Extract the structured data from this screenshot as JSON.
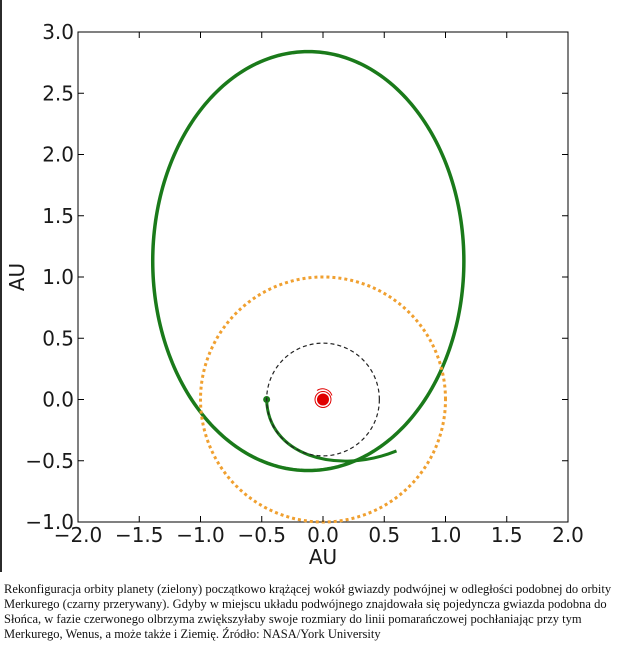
{
  "chart_data": {
    "type": "line",
    "xlabel": "AU",
    "ylabel": "AU",
    "xlim": [
      -2.0,
      2.0
    ],
    "ylim": [
      -1.0,
      3.0
    ],
    "xticks": [
      "−2.0",
      "−1.5",
      "−1.0",
      "−0.5",
      "0.0",
      "0.5",
      "1.0",
      "1.5",
      "2.0"
    ],
    "yticks": [
      "−1.0",
      "−0.5",
      "0.0",
      "0.5",
      "1.0",
      "1.5",
      "2.0",
      "2.5",
      "3.0"
    ],
    "grid": false,
    "series": [
      {
        "color": "#1a7a1a",
        "style": "solid",
        "kind": "spiral-to-ellipse",
        "start": [
          -0.46,
          0.0
        ],
        "ellipse_center": [
          -0.12,
          1.13
        ],
        "ellipse_semi_axes": [
          1.27,
          1.71
        ]
      },
      {
        "color": "#f0a030",
        "style": "dotted",
        "kind": "circle",
        "center": [
          0,
          0
        ],
        "radius": 1.0
      },
      {
        "color": "#222222",
        "style": "dashed",
        "kind": "circle",
        "center": [
          0,
          0
        ],
        "radius": 0.46
      },
      {
        "color": "#e00000",
        "style": "marker",
        "kind": "star",
        "center": [
          0,
          0
        ]
      }
    ]
  },
  "caption": "Rekonfiguracja orbity planety (zielony) początkowo krążącej wokół gwiazdy podwójnej w odległości podobnej do orbity Merkurego (czarny przerywany). Gdyby w miejscu układu podwójnego znajdowała się pojedyncza gwiazda podobna do Słońca, w fazie czerwonego olbrzyma zwiększyłaby swoje rozmiary do linii pomarańczowej pochłaniając przy tym Merkurego, Wenus, a może także i Ziemię. Źródło: NASA/York University"
}
